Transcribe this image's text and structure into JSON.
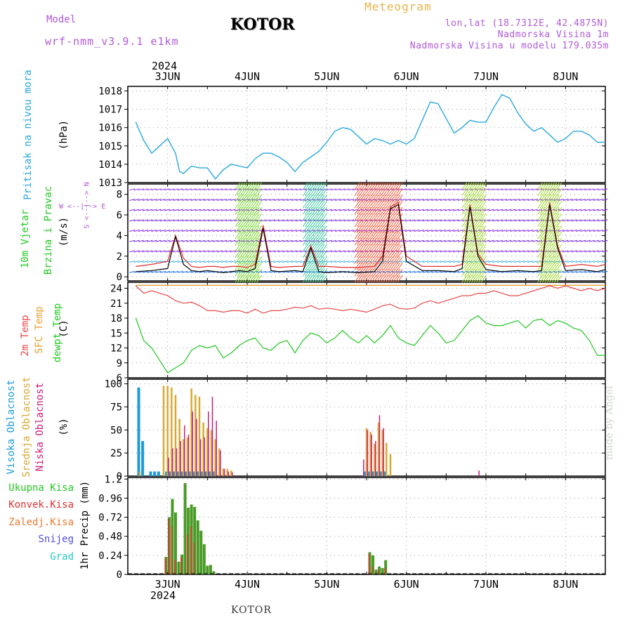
{
  "header": {
    "model_label": "Model",
    "model_name": "wrf-nmm_v3.9.1 e1km",
    "station": "KOTOR",
    "meteogram": "Meteogram",
    "lonlat": "lon,lat (18.7312E, 42.4875N)",
    "elevation": "Nadmorska Visina 1m",
    "model_elevation": "Nadmorska Visina u modelu 179.035m"
  },
  "year": "2024",
  "days": [
    "3JUN",
    "4JUN",
    "5JUN",
    "6JUN",
    "7JUN",
    "8JUN"
  ],
  "footer_station": "KOTOR",
  "made_by": "made by Angel",
  "colors": {
    "pressure": "#2aa8e0",
    "wind_speed_max": "#e03030",
    "wind_speed": "#000000",
    "t2m": "#e84848",
    "sfc": "#e8a030",
    "dew": "#22c822",
    "high_cloud": "#1e9ad8",
    "mid_cloud": "#d8a830",
    "low_cloud": "#c81e78",
    "total_precip": "#4a9a28",
    "conv_precip": "#e03030"
  },
  "panels": {
    "pressure": {
      "labels": [
        "Pritisak na nivou mora",
        "(hPa)"
      ]
    },
    "wind": {
      "labels": [
        "10m Vjetar",
        "Brzina i Pravac",
        "(m/s)"
      ],
      "compass": "W <--|--> E",
      "compass_v": "S <--|--> N"
    },
    "temp": {
      "labels": [
        "2m Temp",
        "SFC Temp",
        "dewpt Temp",
        "(C)"
      ]
    },
    "cloud": {
      "labels": [
        "Visoka Oblacnost",
        "Srednja Oblacnost",
        "Niska Oblacnost",
        "(%)"
      ]
    },
    "precip": {
      "labels": [
        "Ukupna Kisa",
        "Konvek.Kisa",
        "Zaledj.Kisa",
        "Snijeg",
        "Grad"
      ],
      "unit": "1hr Precip (mm)"
    }
  },
  "chart_data": [
    {
      "type": "line",
      "title": "Pritisak na nivou mora",
      "ylabel": "(hPa)",
      "ylim": [
        1013,
        1018.25
      ],
      "yticks": [
        1013,
        1014,
        1015,
        1016,
        1017,
        1018
      ],
      "x_days": [
        2.6,
        2.7,
        2.8,
        2.9,
        3.0,
        3.1,
        3.15,
        3.2,
        3.3,
        3.4,
        3.5,
        3.6,
        3.7,
        3.8,
        3.9,
        4.0,
        4.1,
        4.2,
        4.3,
        4.4,
        4.5,
        4.6,
        4.7,
        4.8,
        4.9,
        5.0,
        5.1,
        5.2,
        5.3,
        5.4,
        5.5,
        5.6,
        5.7,
        5.8,
        5.9,
        6.0,
        6.1,
        6.2,
        6.3,
        6.4,
        6.5,
        6.6,
        6.7,
        6.8,
        6.9,
        7.0,
        7.1,
        7.2,
        7.3,
        7.4,
        7.5,
        7.6,
        7.7,
        7.8,
        7.9,
        8.0,
        8.1,
        8.2,
        8.3,
        8.4,
        8.5
      ],
      "series": [
        {
          "values": [
            1016.3,
            1015.3,
            1014.6,
            1015.0,
            1015.4,
            1014.6,
            1013.6,
            1013.5,
            1013.9,
            1013.8,
            1013.8,
            1013.2,
            1013.7,
            1014.0,
            1013.9,
            1013.8,
            1014.3,
            1014.6,
            1014.6,
            1014.4,
            1014.1,
            1013.6,
            1014.1,
            1014.4,
            1014.7,
            1015.2,
            1015.8,
            1016.0,
            1015.9,
            1015.5,
            1015.1,
            1015.4,
            1015.3,
            1015.1,
            1015.3,
            1015.1,
            1015.4,
            1016.4,
            1017.4,
            1017.3,
            1016.5,
            1015.7,
            1016.0,
            1016.4,
            1016.3,
            1016.3,
            1017.1,
            1017.8,
            1017.6,
            1016.8,
            1016.2,
            1015.8,
            1016.0,
            1015.6,
            1015.2,
            1015.4,
            1015.8,
            1015.8,
            1015.6,
            1015.2,
            1015.2
          ]
        }
      ]
    },
    {
      "type": "line",
      "title": "10m Vjetar Brzina i Pravac",
      "ylabel": "(m/s)",
      "ylim": [
        -0.4,
        9.0
      ],
      "yticks": [
        0,
        2,
        4,
        6,
        8
      ],
      "x_days": [
        2.6,
        2.8,
        3.0,
        3.1,
        3.2,
        3.3,
        3.4,
        3.5,
        3.6,
        3.7,
        3.8,
        3.9,
        4.0,
        4.1,
        4.2,
        4.3,
        4.4,
        4.6,
        4.7,
        4.8,
        4.9,
        5.0,
        5.2,
        5.4,
        5.6,
        5.7,
        5.8,
        5.9,
        6.0,
        6.2,
        6.4,
        6.6,
        6.7,
        6.8,
        6.9,
        7.0,
        7.2,
        7.4,
        7.6,
        7.7,
        7.8,
        7.9,
        8.0,
        8.2,
        8.4,
        8.5
      ],
      "series": [
        {
          "values": [
            1.0,
            1.2,
            1.5,
            4.0,
            1.8,
            1.0,
            0.9,
            1.0,
            1.0,
            0.9,
            1.0,
            1.0,
            0.9,
            1.2,
            5.0,
            1.0,
            0.9,
            1.0,
            1.0,
            3.0,
            1.0,
            1.0,
            0.9,
            0.9,
            1.0,
            2.0,
            6.8,
            7.2,
            2.0,
            1.0,
            1.0,
            1.0,
            1.2,
            7.0,
            2.2,
            1.2,
            1.0,
            1.0,
            1.0,
            1.0,
            7.2,
            3.0,
            1.0,
            1.2,
            1.0,
            1.2
          ]
        },
        {
          "values": [
            0.5,
            0.6,
            0.8,
            3.9,
            1.2,
            0.6,
            0.5,
            0.6,
            0.5,
            0.4,
            0.5,
            0.6,
            0.5,
            0.8,
            4.7,
            0.6,
            0.5,
            0.6,
            0.5,
            2.8,
            0.5,
            0.4,
            0.5,
            0.4,
            0.5,
            1.5,
            6.6,
            7.0,
            1.5,
            0.6,
            0.6,
            0.5,
            0.8,
            6.8,
            2.0,
            0.7,
            0.5,
            0.6,
            0.5,
            0.6,
            7.0,
            2.8,
            0.6,
            0.7,
            0.5,
            0.7
          ]
        }
      ]
    },
    {
      "type": "line",
      "title": "2m Temp / SFC Temp / dewpt Temp",
      "ylabel": "(C)",
      "ylim": [
        6,
        25.2
      ],
      "yticks": [
        6,
        9,
        12,
        15,
        18,
        21,
        24
      ],
      "x_days": [
        2.6,
        2.7,
        2.8,
        2.9,
        3.0,
        3.1,
        3.2,
        3.3,
        3.4,
        3.5,
        3.6,
        3.7,
        3.8,
        3.9,
        4.0,
        4.1,
        4.2,
        4.3,
        4.4,
        4.5,
        4.6,
        4.7,
        4.8,
        4.9,
        5.0,
        5.1,
        5.2,
        5.3,
        5.4,
        5.5,
        5.6,
        5.7,
        5.8,
        5.9,
        6.0,
        6.1,
        6.2,
        6.3,
        6.4,
        6.5,
        6.6,
        6.7,
        6.8,
        6.9,
        7.0,
        7.1,
        7.2,
        7.3,
        7.4,
        7.5,
        7.6,
        7.7,
        7.8,
        7.9,
        8.0,
        8.1,
        8.2,
        8.3,
        8.4,
        8.5
      ],
      "series": [
        {
          "values": [
            24.5,
            23.0,
            23.5,
            23.0,
            22.5,
            21.5,
            21.0,
            21.2,
            20.5,
            19.5,
            19.5,
            19.2,
            19.5,
            19.5,
            19.0,
            19.8,
            19.0,
            19.5,
            19.5,
            19.8,
            20.2,
            20.0,
            20.5,
            19.8,
            20.0,
            19.8,
            19.5,
            19.8,
            19.5,
            19.2,
            19.8,
            20.5,
            20.8,
            20.0,
            19.8,
            20.0,
            21.0,
            21.5,
            21.0,
            21.5,
            22.0,
            22.5,
            22.5,
            23.0,
            23.0,
            23.5,
            23.0,
            22.5,
            22.5,
            23.0,
            23.5,
            24.0,
            24.5,
            24.0,
            24.5,
            24.0,
            23.5,
            24.0,
            23.5,
            24.0
          ]
        },
        {
          "values": [
            24.6,
            24.6,
            24.6,
            24.6,
            24.6,
            24.6,
            24.6,
            24.6,
            24.6,
            24.6,
            24.6,
            24.6,
            24.6,
            24.6,
            24.6,
            24.6,
            24.6,
            24.6,
            24.6,
            24.6,
            24.6,
            24.6,
            24.6,
            24.6,
            24.6,
            24.6,
            24.6,
            24.6,
            24.6,
            24.6,
            24.6,
            24.6,
            24.6,
            24.6,
            24.6,
            24.6,
            24.6,
            24.6,
            24.6,
            24.6,
            24.6,
            24.6,
            24.6,
            24.6,
            24.6,
            24.6,
            24.6,
            24.6,
            24.6,
            24.6,
            24.6,
            24.6,
            24.6,
            24.6,
            24.6,
            24.6,
            24.6,
            24.6,
            24.6,
            24.6
          ]
        },
        {
          "values": [
            18.0,
            13.5,
            12.0,
            9.5,
            7.0,
            8.0,
            9.0,
            11.5,
            12.5,
            12.0,
            12.5,
            10.0,
            11.0,
            12.5,
            13.5,
            14.0,
            12.0,
            11.5,
            13.0,
            13.5,
            11.0,
            13.5,
            15.0,
            14.5,
            13.0,
            14.0,
            15.5,
            14.0,
            13.0,
            14.5,
            13.0,
            14.5,
            16.5,
            14.0,
            13.0,
            12.5,
            14.5,
            16.5,
            15.0,
            13.0,
            13.5,
            15.5,
            17.5,
            18.5,
            17.0,
            16.5,
            16.5,
            17.0,
            17.5,
            16.0,
            17.5,
            17.8,
            16.5,
            17.5,
            17.0,
            16.0,
            15.5,
            13.5,
            10.5,
            10.5
          ]
        }
      ]
    },
    {
      "type": "bar",
      "title": "Visoka / Srednja / Niska Oblacnost",
      "ylabel": "(%)",
      "ylim": [
        0,
        105
      ],
      "yticks": [
        0,
        25,
        50,
        75,
        100
      ],
      "series": [
        {
          "name": "Visoka Oblacnost",
          "x_days": [
            2.65,
            2.7,
            2.8,
            2.85,
            2.9,
            3.0,
            3.05,
            3.1,
            3.15,
            3.2,
            3.25,
            3.3,
            3.35,
            3.4,
            3.45,
            3.5,
            3.55,
            3.6,
            5.5,
            5.55,
            5.6,
            5.65,
            5.7,
            5.75
          ],
          "values": [
            96,
            38,
            5,
            5,
            5,
            5,
            5,
            5,
            5,
            5,
            5,
            5,
            5,
            5,
            5,
            5,
            5,
            5,
            5,
            5,
            5,
            5,
            5,
            5
          ]
        },
        {
          "name": "Srednja Oblacnost",
          "x_days": [
            2.65,
            2.95,
            3.0,
            3.05,
            3.1,
            3.15,
            3.2,
            3.25,
            3.3,
            3.35,
            3.4,
            3.45,
            3.5,
            3.55,
            3.6,
            3.65,
            3.7,
            3.75,
            3.8,
            5.5,
            5.55,
            5.6,
            5.65,
            5.7,
            5.75,
            5.8
          ],
          "values": [
            5,
            98,
            98,
            96,
            88,
            62,
            40,
            42,
            95,
            88,
            86,
            58,
            52,
            50,
            40,
            30,
            8,
            8,
            6,
            52,
            48,
            35,
            58,
            50,
            36,
            24
          ]
        },
        {
          "name": "Niska Oblacnost",
          "x_days": [
            3.0,
            3.05,
            3.1,
            3.15,
            3.2,
            3.25,
            3.3,
            3.35,
            3.4,
            3.45,
            3.5,
            3.55,
            3.6,
            3.65,
            3.7,
            3.75,
            3.8,
            5.45,
            5.5,
            5.55,
            5.6,
            5.65,
            5.7,
            6.9
          ],
          "values": [
            20,
            30,
            30,
            38,
            55,
            45,
            70,
            62,
            40,
            42,
            70,
            86,
            60,
            28,
            8,
            5,
            4,
            18,
            50,
            45,
            38,
            66,
            52,
            6
          ]
        }
      ]
    },
    {
      "type": "bar",
      "title": "1hr Precip",
      "ylabel": "1hr Precip (mm)",
      "ylim": [
        0,
        1.22
      ],
      "yticks": [
        0,
        0.24,
        0.48,
        0.72,
        0.96,
        1.2
      ],
      "series": [
        {
          "name": "Ukupna Kisa",
          "x_days": [
            2.98,
            3.02,
            3.06,
            3.1,
            3.14,
            3.18,
            3.22,
            3.26,
            3.3,
            3.34,
            3.38,
            3.42,
            3.46,
            3.5,
            3.54,
            3.58,
            5.54,
            5.58,
            5.62,
            5.66,
            5.7,
            5.74
          ],
          "values": [
            0.22,
            0.72,
            0.95,
            0.78,
            0.16,
            0.25,
            1.15,
            0.84,
            0.88,
            0.85,
            0.68,
            0.55,
            0.38,
            0.11,
            0.12,
            0.04,
            0.28,
            0.24,
            0.06,
            0.1,
            0.08,
            0.18
          ]
        },
        {
          "name": "Konvek.Kisa",
          "x_days": [
            2.98,
            3.02,
            3.06,
            3.1,
            3.18,
            3.26,
            3.3,
            3.34,
            5.54,
            5.58,
            5.66,
            5.74
          ],
          "values": [
            0.2,
            0.7,
            0.6,
            0.18,
            0.22,
            0.5,
            0.6,
            0.4,
            0.26,
            0.1,
            0.06,
            0.08
          ]
        }
      ]
    }
  ]
}
